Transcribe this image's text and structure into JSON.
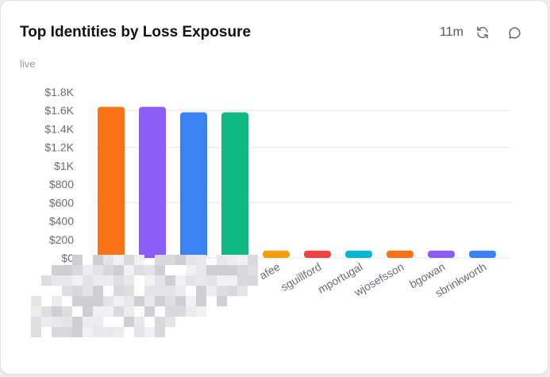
{
  "card": {
    "title": "Top Identities by Loss Exposure",
    "subtitle": "live",
    "refresh_interval": "11m",
    "icons": {
      "refresh": "refresh-icon",
      "comment": "comment-icon"
    }
  },
  "chart_data": {
    "type": "bar",
    "title": "Top Identities by Loss Exposure",
    "categories": [
      "",
      "",
      "",
      "",
      "afee",
      "sguillford",
      "mportugal",
      "wjosefsson",
      "bgowan",
      "sbrinkworth"
    ],
    "values": [
      1640,
      1640,
      1580,
      1580,
      80,
      80,
      80,
      80,
      80,
      80
    ],
    "bar_colors": [
      "#f97316",
      "#8b5cf6",
      "#3b82f6",
      "#10b981",
      "#f59e0b",
      "#ef4444",
      "#06b6d4",
      "#f97316",
      "#8b5cf6",
      "#3b82f6"
    ],
    "yticks": [
      "$0",
      "$200",
      "$400",
      "$600",
      "$800",
      "$1K",
      "$1.2K",
      "$1.4K",
      "$1.6K",
      "$1.8K"
    ],
    "ylim": [
      0,
      1800
    ],
    "grid": true,
    "xlabel": "",
    "ylabel": ""
  }
}
